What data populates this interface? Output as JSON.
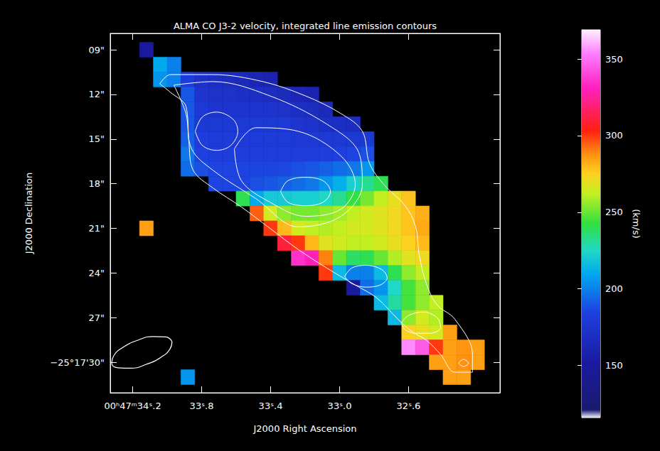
{
  "chart_data": {
    "type": "heatmap",
    "title": "ALMA CO J3-2 velocity, integrated line emission contours",
    "x_label": "J2000 Right Ascension",
    "y_label": "J2000 Declination",
    "xlim": [
      34.33,
      32.07
    ],
    "xticks": [
      {
        "value": 34.2,
        "label": "00ʰ47ᵐ34ˢ.2"
      },
      {
        "value": 33.8,
        "label": "33ˢ.8"
      },
      {
        "value": 33.4,
        "label": "33ˢ.4"
      },
      {
        "value": 33.0,
        "label": "33ˢ.0"
      },
      {
        "value": 32.6,
        "label": "32ˢ.6"
      }
    ],
    "ylim": [
      32.05,
      7.9
    ],
    "yticks": [
      {
        "value": 9,
        "label": "09\""
      },
      {
        "value": 12,
        "label": "12\""
      },
      {
        "value": 15,
        "label": "15\""
      },
      {
        "value": 18,
        "label": "18\""
      },
      {
        "value": 21,
        "label": "21\""
      },
      {
        "value": 24,
        "label": "24\""
      },
      {
        "value": 27,
        "label": "27\""
      },
      {
        "value": 30,
        "label": "−25°17'30\""
      }
    ],
    "x": [
      34.12,
      34.04,
      33.96,
      33.88,
      33.8,
      33.72,
      33.64,
      33.56,
      33.48,
      33.4,
      33.32,
      33.24,
      33.16,
      33.08,
      33.0,
      32.92,
      32.84,
      32.76,
      32.68,
      32.6,
      32.52,
      32.44,
      32.36,
      32.28,
      32.2
    ],
    "y": [
      9,
      10,
      11,
      12,
      13,
      14,
      15,
      16,
      17,
      18,
      19,
      20,
      21,
      22,
      23,
      24,
      25,
      26,
      27,
      28,
      29,
      30,
      31
    ],
    "values": [
      [
        150,
        null,
        null,
        null,
        null,
        null,
        null,
        null,
        null,
        null,
        null,
        null,
        null,
        null,
        null,
        null,
        null,
        null,
        null,
        null,
        null,
        null,
        null,
        null,
        null
      ],
      [
        null,
        210,
        200,
        null,
        null,
        null,
        null,
        null,
        null,
        null,
        null,
        null,
        null,
        null,
        null,
        null,
        null,
        null,
        null,
        null,
        null,
        null,
        null,
        null,
        null
      ],
      [
        null,
        205,
        200,
        180,
        172,
        170,
        168,
        165,
        162,
        160,
        null,
        null,
        null,
        null,
        null,
        null,
        null,
        null,
        null,
        null,
        null,
        null,
        null,
        null,
        null
      ],
      [
        null,
        null,
        null,
        190,
        175,
        172,
        172,
        170,
        170,
        168,
        165,
        162,
        160,
        null,
        null,
        null,
        null,
        null,
        null,
        null,
        null,
        null,
        null,
        null,
        null
      ],
      [
        null,
        null,
        null,
        190,
        178,
        175,
        175,
        175,
        175,
        175,
        172,
        170,
        168,
        165,
        null,
        null,
        null,
        null,
        null,
        null,
        null,
        null,
        null,
        null,
        null
      ],
      [
        null,
        null,
        null,
        190,
        178,
        178,
        178,
        178,
        178,
        178,
        178,
        175,
        172,
        170,
        170,
        168,
        null,
        null,
        null,
        null,
        null,
        null,
        null,
        null,
        null
      ],
      [
        null,
        null,
        null,
        192,
        182,
        180,
        180,
        180,
        180,
        180,
        180,
        178,
        178,
        178,
        178,
        178,
        178,
        null,
        null,
        null,
        null,
        null,
        null,
        null,
        null
      ],
      [
        null,
        null,
        null,
        198,
        184,
        182,
        182,
        182,
        182,
        182,
        182,
        182,
        182,
        182,
        183,
        185,
        188,
        null,
        null,
        null,
        null,
        null,
        null,
        null,
        null
      ],
      [
        null,
        null,
        null,
        195,
        188,
        185,
        185,
        185,
        185,
        185,
        186,
        188,
        190,
        192,
        195,
        198,
        205,
        null,
        null,
        null,
        null,
        null,
        null,
        null,
        null
      ],
      [
        null,
        null,
        null,
        null,
        null,
        185,
        185,
        185,
        188,
        190,
        192,
        195,
        198,
        205,
        212,
        222,
        232,
        240,
        null,
        null,
        null,
        null,
        null,
        null,
        null
      ],
      [
        null,
        null,
        null,
        null,
        null,
        null,
        null,
        240,
        210,
        220,
        220,
        222,
        222,
        225,
        232,
        242,
        252,
        262,
        270,
        278,
        null,
        null,
        null,
        null,
        null
      ],
      [
        null,
        null,
        null,
        null,
        null,
        null,
        null,
        null,
        295,
        265,
        255,
        252,
        252,
        255,
        258,
        262,
        265,
        268,
        272,
        278,
        282,
        null,
        null,
        null,
        null
      ],
      [
        285,
        null,
        null,
        null,
        null,
        null,
        null,
        null,
        null,
        300,
        280,
        265,
        262,
        260,
        262,
        265,
        265,
        268,
        272,
        278,
        283,
        null,
        null,
        null,
        null
      ],
      [
        null,
        null,
        null,
        null,
        null,
        null,
        null,
        null,
        null,
        null,
        310,
        300,
        280,
        268,
        265,
        262,
        262,
        265,
        270,
        275,
        280,
        null,
        null,
        null,
        null
      ],
      [
        null,
        null,
        null,
        null,
        null,
        null,
        null,
        null,
        null,
        null,
        null,
        335,
        330,
        290,
        250,
        238,
        240,
        250,
        260,
        268,
        272,
        null,
        null,
        null,
        null
      ],
      [
        null,
        null,
        null,
        null,
        null,
        null,
        null,
        null,
        null,
        null,
        null,
        null,
        null,
        300,
        215,
        200,
        200,
        215,
        240,
        255,
        262,
        null,
        null,
        null,
        null
      ],
      [
        null,
        null,
        null,
        null,
        null,
        null,
        null,
        null,
        null,
        null,
        null,
        null,
        null,
        null,
        null,
        150,
        195,
        205,
        225,
        245,
        255,
        null,
        null,
        null,
        null
      ],
      [
        null,
        null,
        null,
        null,
        null,
        null,
        null,
        null,
        null,
        null,
        null,
        null,
        null,
        null,
        null,
        null,
        null,
        215,
        230,
        245,
        255,
        262,
        null,
        null,
        null
      ],
      [
        null,
        null,
        null,
        null,
        null,
        null,
        null,
        null,
        null,
        null,
        null,
        null,
        null,
        null,
        null,
        null,
        null,
        null,
        215,
        255,
        265,
        260,
        null,
        null,
        null
      ],
      [
        null,
        null,
        null,
        null,
        null,
        null,
        null,
        null,
        null,
        null,
        null,
        null,
        null,
        null,
        null,
        null,
        null,
        null,
        null,
        275,
        270,
        265,
        285,
        null,
        null
      ],
      [
        null,
        null,
        null,
        null,
        null,
        null,
        null,
        null,
        null,
        null,
        null,
        null,
        null,
        null,
        null,
        null,
        null,
        null,
        null,
        355,
        345,
        300,
        285,
        287,
        285
      ],
      [
        null,
        null,
        null,
        null,
        null,
        null,
        null,
        null,
        null,
        null,
        null,
        null,
        null,
        null,
        null,
        null,
        null,
        null,
        null,
        null,
        null,
        285,
        285,
        288,
        285
      ],
      [
        null,
        null,
        null,
        205,
        null,
        null,
        null,
        null,
        null,
        null,
        null,
        null,
        null,
        null,
        null,
        null,
        null,
        null,
        null,
        null,
        null,
        null,
        285,
        285,
        null
      ]
    ],
    "colorbar": {
      "range": [
        116,
        369
      ],
      "ticks": [
        150,
        200,
        250,
        300,
        350
      ],
      "label": "(km/s)"
    },
    "contours": [
      [
        [
          34.043,
          11.29
        ],
        [
          33.981,
          10.67
        ],
        [
          33.734,
          10.67
        ],
        [
          33.445,
          11.14
        ],
        [
          33.198,
          12.1
        ],
        [
          32.992,
          13.29
        ],
        [
          32.868,
          14.48
        ],
        [
          32.827,
          16.62
        ],
        [
          32.744,
          18.05
        ],
        [
          32.62,
          19.48
        ],
        [
          32.559,
          20.9
        ],
        [
          32.538,
          22.81
        ],
        [
          32.497,
          24.71
        ],
        [
          32.435,
          26.14
        ],
        [
          32.332,
          27.1
        ],
        [
          32.229,
          29.48
        ],
        [
          32.229,
          30.67
        ],
        [
          32.332,
          30.67
        ],
        [
          32.414,
          29.48
        ],
        [
          32.497,
          28.52
        ],
        [
          32.579,
          27.95
        ],
        [
          32.662,
          27.1
        ],
        [
          32.785,
          25.67
        ],
        [
          32.909,
          24.81
        ],
        [
          33.074,
          23.67
        ],
        [
          33.239,
          22.43
        ],
        [
          33.404,
          21.0
        ],
        [
          33.569,
          19.57
        ],
        [
          33.734,
          18.29
        ],
        [
          33.849,
          17.1
        ],
        [
          33.874,
          15.19
        ],
        [
          33.891,
          12.81
        ],
        [
          33.981,
          11.86
        ],
        [
          34.043,
          11.29
        ]
      ],
      [
        [
          33.961,
          11.38
        ],
        [
          33.734,
          11.14
        ],
        [
          33.404,
          12.1
        ],
        [
          33.074,
          14.0
        ],
        [
          32.889,
          15.9
        ],
        [
          32.868,
          18.05
        ],
        [
          32.992,
          20.19
        ],
        [
          33.239,
          20.9
        ],
        [
          33.486,
          19.0
        ],
        [
          33.734,
          17.1
        ],
        [
          33.858,
          15.67
        ],
        [
          33.891,
          13.29
        ],
        [
          33.961,
          11.38
        ]
      ],
      [
        [
          33.837,
          14.48
        ],
        [
          33.796,
          13.52
        ],
        [
          33.713,
          13.19
        ],
        [
          33.618,
          13.67
        ],
        [
          33.59,
          14.48
        ],
        [
          33.631,
          15.43
        ],
        [
          33.713,
          15.76
        ],
        [
          33.796,
          15.43
        ],
        [
          33.837,
          14.48
        ]
      ],
      [
        [
          33.61,
          15.67
        ],
        [
          33.486,
          14.24
        ],
        [
          33.239,
          14.48
        ],
        [
          32.992,
          16.14
        ],
        [
          32.909,
          18.05
        ],
        [
          32.992,
          19.71
        ],
        [
          33.198,
          20.19
        ],
        [
          33.404,
          19.24
        ],
        [
          33.569,
          17.81
        ],
        [
          33.61,
          15.67
        ]
      ],
      [
        [
          33.342,
          18.52
        ],
        [
          33.301,
          17.81
        ],
        [
          33.198,
          17.57
        ],
        [
          33.095,
          17.81
        ],
        [
          33.053,
          18.52
        ],
        [
          33.095,
          19.24
        ],
        [
          33.198,
          19.48
        ],
        [
          33.301,
          19.24
        ],
        [
          33.342,
          18.52
        ]
      ],
      [
        [
          32.971,
          24.24
        ],
        [
          32.93,
          23.67
        ],
        [
          32.847,
          23.48
        ],
        [
          32.757,
          23.76
        ],
        [
          32.724,
          24.33
        ],
        [
          32.765,
          24.81
        ],
        [
          32.847,
          24.95
        ],
        [
          32.93,
          24.71
        ],
        [
          32.971,
          24.24
        ]
      ],
      [
        [
          32.641,
          27.33
        ],
        [
          32.6,
          26.86
        ],
        [
          32.517,
          26.62
        ],
        [
          32.435,
          27.0
        ],
        [
          32.414,
          27.67
        ],
        [
          32.476,
          28.05
        ],
        [
          32.559,
          28.05
        ],
        [
          32.62,
          27.81
        ],
        [
          32.641,
          27.33
        ]
      ],
      [
        [
          32.311,
          30.05
        ],
        [
          32.282,
          29.81
        ],
        [
          32.253,
          30.05
        ],
        [
          32.282,
          30.29
        ],
        [
          32.311,
          30.05
        ]
      ]
    ],
    "beam": [
      [
        33.972,
        28.6
      ],
      [
        34.008,
        28.3
      ],
      [
        34.081,
        28.27
      ],
      [
        34.172,
        28.53
      ],
      [
        34.256,
        29.0
      ],
      [
        34.31,
        29.57
      ],
      [
        34.321,
        30.07
      ],
      [
        34.285,
        30.37
      ],
      [
        34.212,
        30.4
      ],
      [
        34.121,
        30.14
      ],
      [
        34.037,
        29.67
      ],
      [
        33.983,
        29.1
      ],
      [
        33.972,
        28.6
      ]
    ]
  }
}
